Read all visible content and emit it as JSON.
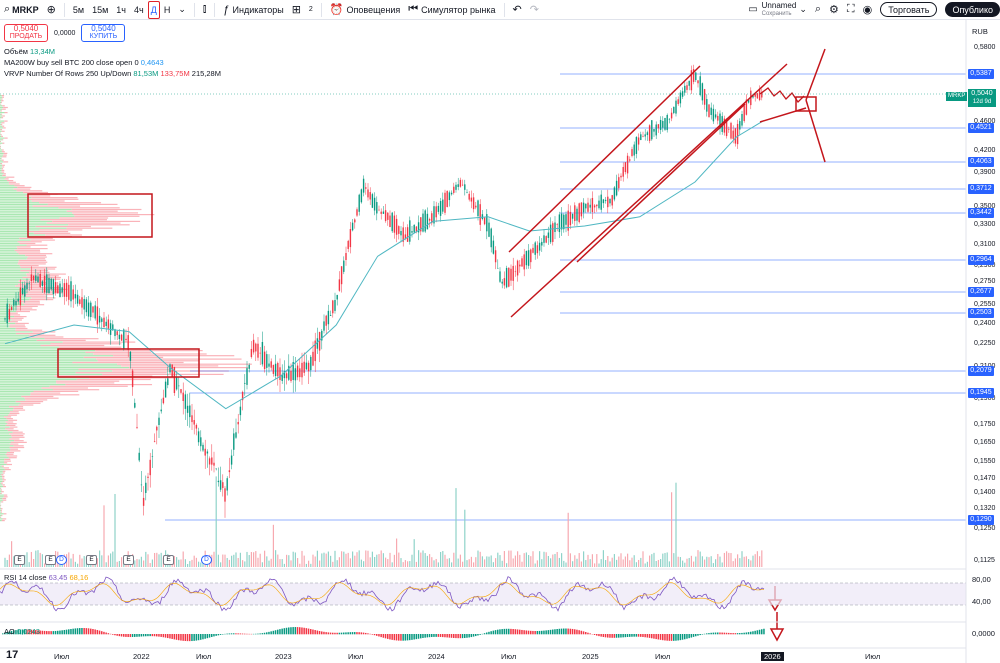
{
  "toolbar": {
    "symbol": "MRKP",
    "intervals": [
      "5м",
      "15м",
      "1ч",
      "4ч",
      "Д",
      "Н"
    ],
    "active_interval": "Д",
    "indicators_label": "Индикаторы",
    "layouts_count": "2",
    "alerts_label": "Оповещения",
    "replay_label": "Симулятор рынка",
    "layout_name": "Unnamed",
    "layout_status": "Сохранить",
    "trade_label": "Торговать",
    "publish_label": "Опублико"
  },
  "trade": {
    "sell_price": "0,5040",
    "sell_label": "ПРОДАТЬ",
    "spread": "0,0000",
    "buy_price": "0,5040",
    "buy_label": "КУПИТЬ"
  },
  "legend": {
    "volume_label": "Объём",
    "volume_value": "13,34M",
    "ma_label": "MA200W buy sell BTC 200 close open 0",
    "ma_value": "0,4643",
    "vrvp_label": "VRVP Number Of Rows 250 Up/Down",
    "vrvp_up": "81,53M",
    "vrvp_down": "133,75M",
    "vrvp_total": "215,28M"
  },
  "axis": {
    "currency": "RUB",
    "current_price": "0,5040",
    "current_countdown": "12d 9d",
    "symbol_tag": "MRKP",
    "rsi_label": "RSI 14 close",
    "rsi_value_1": "63,45",
    "rsi_value_2": "68,16",
    "ao_label": "AO",
    "ao_value": "0,0243",
    "rsi_ticks": [
      "80,00",
      "40,00"
    ],
    "ao_ticks": [
      "0,0000"
    ]
  },
  "chart_data": {
    "type": "line",
    "price_ticks": [
      "0,5800",
      "0,5387",
      "0,5040",
      "0,4600",
      "0,4521",
      "0,4200",
      "0,4063",
      "0,3900",
      "0,3712",
      "0,3500",
      "0,3442",
      "0,3300",
      "0,3100",
      "0,2964",
      "0,2900",
      "0,2750",
      "0,2677",
      "0,2550",
      "0,2503",
      "0,2400",
      "0,2250",
      "0,2079",
      "0,2100",
      "0,1945",
      "0,1900",
      "0,1750",
      "0,1650",
      "0,1550",
      "0,1470",
      "0,1400",
      "0,1320",
      "0,1290",
      "0,1250",
      "0,1125"
    ],
    "level_lines": [
      "0,5387",
      "0,4521",
      "0,4063",
      "0,3712",
      "0,3442",
      "0,2964",
      "0,2677",
      "0,2503",
      "0,2079",
      "0,1945",
      "0,1290"
    ],
    "x_ticks": [
      "Июл",
      "2022",
      "Июл",
      "2023",
      "Июл",
      "2024",
      "Июл",
      "2025",
      "Июл",
      "2026",
      "Июл"
    ],
    "events": [
      "E",
      "E",
      "D",
      "E",
      "E",
      "E",
      "D"
    ],
    "series": [
      {
        "name": "MRKP",
        "x": [
          "2021-05",
          "2021-07",
          "2021-10",
          "2021-12",
          "2022-02",
          "2022-03",
          "2022-05",
          "2022-07",
          "2022-09",
          "2022-11",
          "2023-01",
          "2023-03",
          "2023-05",
          "2023-07",
          "2023-08",
          "2023-10",
          "2023-12",
          "2024-02",
          "2024-04",
          "2024-05",
          "2024-07",
          "2024-09",
          "2024-11",
          "2025-01",
          "2025-03",
          "2025-05",
          "2025-07",
          "2025-08",
          "2025-10",
          "2025-11",
          "2025-12"
        ],
        "values": [
          0.245,
          0.28,
          0.265,
          0.245,
          0.225,
          0.135,
          0.21,
          0.17,
          0.14,
          0.225,
          0.205,
          0.21,
          0.26,
          0.375,
          0.35,
          0.32,
          0.34,
          0.38,
          0.33,
          0.275,
          0.3,
          0.33,
          0.35,
          0.36,
          0.44,
          0.46,
          0.54,
          0.48,
          0.44,
          0.5,
          0.504
        ]
      },
      {
        "name": "MA200W",
        "x": [
          "2021-05",
          "2021-10",
          "2022-02",
          "2022-05",
          "2022-09",
          "2023-01",
          "2023-05",
          "2023-08",
          "2023-12",
          "2024-04",
          "2024-07",
          "2024-11",
          "2025-03",
          "2025-07",
          "2025-10",
          "2025-12"
        ],
        "values": [
          0.226,
          0.24,
          0.235,
          0.21,
          0.185,
          0.205,
          0.24,
          0.3,
          0.335,
          0.34,
          0.325,
          0.33,
          0.34,
          0.38,
          0.44,
          0.464
        ]
      }
    ],
    "ylim": [
      0.11,
      0.6
    ]
  }
}
